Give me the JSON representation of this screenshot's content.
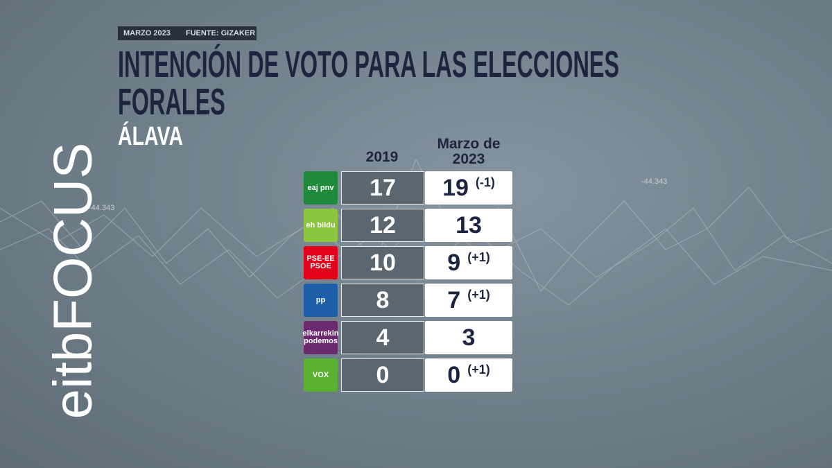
{
  "header": {
    "date": "MARZO 2023",
    "source": "FUENTE: GIZAKER",
    "title": "INTENCIÓN DE VOTO PARA LAS ELECCIONES FORALES",
    "subtitle": "ÁLAVA"
  },
  "brand": "eitbFOCUS",
  "background_labels": [
    "-44.343",
    "-44.343"
  ],
  "table": {
    "columns": [
      "2019",
      "Marzo de 2023"
    ],
    "rows": [
      {
        "party": "eaj pnv",
        "color": "#1f8a3c",
        "v2019": 17,
        "v2023": 19,
        "change": "(-1)"
      },
      {
        "party": "eh bildu",
        "color": "#8cc63f",
        "v2019": 12,
        "v2023": 13
      },
      {
        "party": "PSE-EE PSOE",
        "color": "#e2001a",
        "v2019": 10,
        "v2023": 9,
        "change": "(+1)"
      },
      {
        "party": "pp",
        "color": "#1d5fa6",
        "v2019": 8,
        "v2023": 7,
        "change": "(+1)"
      },
      {
        "party": "elkarrekin podemos",
        "color": "#6b2a6e",
        "v2019": 4,
        "v2023": 3
      },
      {
        "party": "VOX",
        "color": "#5ab031",
        "v2019": 0,
        "v2023": 0,
        "change": "(+1)"
      }
    ]
  }
}
